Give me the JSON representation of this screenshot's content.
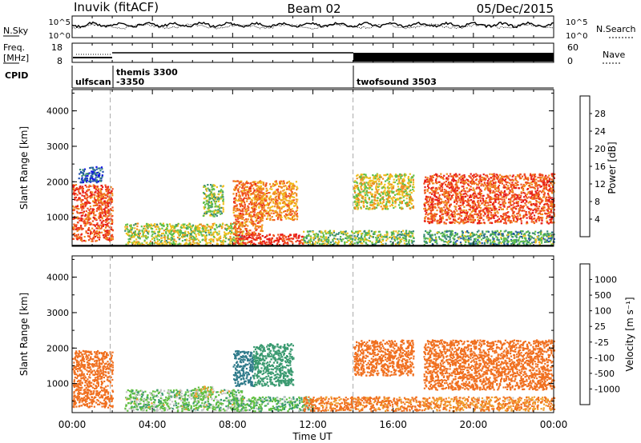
{
  "header": {
    "station": "Inuvik (fitACF)",
    "beam": "Beam 02",
    "date": "05/Dec/2015"
  },
  "noise_panel": {
    "left_label": "N.Sky",
    "right_label": "N.Search",
    "left_ticks": [
      "10^5",
      "10^0"
    ],
    "right_ticks": [
      "10^5",
      "10^0"
    ]
  },
  "freq_panel": {
    "left_label_1": "Freq.",
    "left_label_2": "[MHz]",
    "right_label": "Nave",
    "left_ticks": [
      18,
      8
    ],
    "right_ticks": [
      60,
      0
    ]
  },
  "cpid_panel": {
    "label": "CPID",
    "segments": [
      {
        "start_hour": 0.0,
        "name": "ulfscan"
      },
      {
        "start_hour": 1.9,
        "name": "themis 3300\n-3350"
      },
      {
        "start_hour": 14.0,
        "name": "twofsound 3503"
      }
    ]
  },
  "x_axis": {
    "label": "Time UT",
    "ticks": [
      "00:00",
      "04:00",
      "08:00",
      "12:00",
      "16:00",
      "20:00",
      "00:00"
    ],
    "range_hours": [
      0,
      24
    ]
  },
  "power_panel": {
    "ylabel": "Slant Range [km]",
    "yticks": [
      1000,
      2000,
      3000,
      4000
    ],
    "colorbar_label": "Power [dB]",
    "colorbar_ticks": [
      4,
      8,
      12,
      16,
      20,
      24,
      28
    ],
    "colorbar_colors": [
      "#1010e6",
      "#2050b0",
      "#3a8a78",
      "#5fbf4a",
      "#f0c020",
      "#f08c20",
      "#f05020",
      "#e61a1a"
    ]
  },
  "velocity_panel": {
    "ylabel": "Slant Range [km]",
    "yticks": [
      1000,
      2000,
      3000,
      4000
    ],
    "colorbar_label": "Velocity [m s⁻¹]",
    "colorbar_ticks": [
      1000,
      500,
      100,
      25,
      -25,
      -100,
      -500,
      -1000
    ],
    "colorbar_colors": [
      "#1f3fbf",
      "#2f7a8a",
      "#3a9a70",
      "#60c040",
      "#c8c8c8",
      "#f0a030",
      "#f07020",
      "#e84020",
      "#e01818"
    ]
  },
  "chart_data": {
    "type": "heatmap",
    "x_range_hours": [
      0,
      24
    ],
    "y_range_km": [
      180,
      4600
    ],
    "cpid_change_hours": [
      1.9,
      14.0
    ],
    "power_scatter_regions": [
      {
        "t0": 0.0,
        "t1": 2.0,
        "r0": 300,
        "r1": 1900,
        "power_db": 26
      },
      {
        "t0": 0.3,
        "t1": 1.5,
        "r0": 1950,
        "r1": 2400,
        "power_db": 6
      },
      {
        "t0": 2.6,
        "t1": 8.5,
        "r0": 200,
        "r1": 800,
        "power_db": 16
      },
      {
        "t0": 6.5,
        "t1": 7.5,
        "r0": 1000,
        "r1": 1900,
        "power_db": 14
      },
      {
        "t0": 8.0,
        "t1": 11.5,
        "r0": 200,
        "r1": 500,
        "power_db": 28
      },
      {
        "t0": 8.0,
        "t1": 9.5,
        "r0": 500,
        "r1": 2000,
        "power_db": 24
      },
      {
        "t0": 9.2,
        "t1": 11.2,
        "r0": 900,
        "r1": 2000,
        "power_db": 22
      },
      {
        "t0": 11.5,
        "t1": 17.0,
        "r0": 200,
        "r1": 600,
        "power_db": 14
      },
      {
        "t0": 14.0,
        "t1": 17.0,
        "r0": 1200,
        "r1": 2200,
        "power_db": 18
      },
      {
        "t0": 17.5,
        "t1": 24.0,
        "r0": 200,
        "r1": 600,
        "power_db": 12
      },
      {
        "t0": 17.5,
        "t1": 24.0,
        "r0": 800,
        "r1": 2200,
        "power_db": 26
      }
    ],
    "velocity_scatter_regions": [
      {
        "t0": 0.0,
        "t1": 2.0,
        "r0": 300,
        "r1": 1900,
        "velocity": -200
      },
      {
        "t0": 2.6,
        "t1": 8.5,
        "r0": 200,
        "r1": 800,
        "velocity": 50
      },
      {
        "t0": 6.0,
        "t1": 7.0,
        "r0": 600,
        "r1": 900,
        "velocity": 0
      },
      {
        "t0": 8.0,
        "t1": 9.0,
        "r0": 900,
        "r1": 1900,
        "velocity": 800
      },
      {
        "t0": 9.0,
        "t1": 11.0,
        "r0": 900,
        "r1": 2100,
        "velocity": 200
      },
      {
        "t0": 8.0,
        "t1": 12.0,
        "r0": 200,
        "r1": 600,
        "velocity": 80
      },
      {
        "t0": 14.0,
        "t1": 17.0,
        "r0": 1200,
        "r1": 2200,
        "velocity": -250
      },
      {
        "t0": 11.5,
        "t1": 17.5,
        "r0": 200,
        "r1": 600,
        "velocity": -150
      },
      {
        "t0": 17.5,
        "t1": 24.0,
        "r0": 800,
        "r1": 2200,
        "velocity": -300
      },
      {
        "t0": 17.5,
        "t1": 24.0,
        "r0": 200,
        "r1": 600,
        "velocity": -100
      }
    ]
  }
}
